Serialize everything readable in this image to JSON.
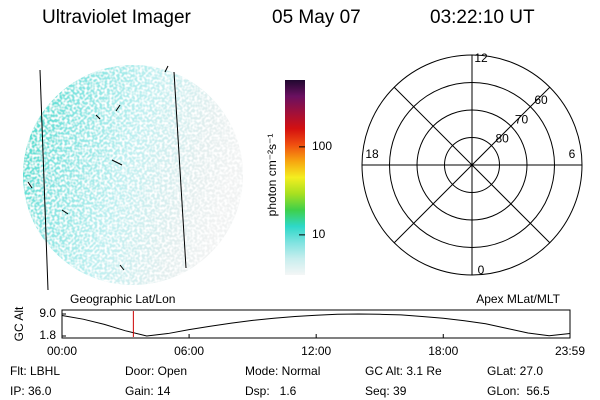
{
  "header": {
    "title": "Ultraviolet Imager",
    "date": "05 May 07",
    "time": "03:22:10 UT"
  },
  "colorbar": {
    "label": "photon cm⁻²s⁻¹",
    "scale": "log",
    "lim": [
      3.5,
      575
    ],
    "ticks": [
      10,
      100
    ],
    "colors": [
      "#f4f6f6",
      "#c8eeee",
      "#7fe3e0",
      "#2ed8c8",
      "#3fd04a",
      "#a8e020",
      "#f4ee20",
      "#f7a510",
      "#f05010",
      "#d41010",
      "#a0103a",
      "#6a1060",
      "#200830"
    ]
  },
  "image": {
    "title": "Geographic Lat/Lon"
  },
  "polar": {
    "title": "Apex MLat/MLT",
    "mlt_ticks": [
      12,
      18,
      6,
      0
    ],
    "mlat_rings": [
      60,
      70,
      80
    ],
    "mlat_lim": [
      50,
      90
    ]
  },
  "timeline": {
    "ylabel": "GC Alt",
    "x": [
      0,
      1,
      2,
      3,
      4,
      5,
      6,
      7,
      8,
      9,
      10,
      11,
      12,
      13,
      14,
      15,
      16,
      17,
      18,
      19,
      20,
      21,
      22,
      23,
      23.983
    ],
    "values": [
      8.5,
      7.3,
      5.6,
      3.5,
      1.8,
      2.6,
      3.9,
      5.0,
      6.0,
      6.9,
      7.6,
      8.2,
      8.6,
      8.9,
      9.0,
      8.9,
      8.7,
      8.2,
      7.6,
      6.8,
      5.8,
      4.3,
      2.8,
      1.9,
      2.6
    ],
    "xlim": [
      0,
      23.983
    ],
    "xticks": [
      {
        "value": 0,
        "label": "00:00"
      },
      {
        "value": 6,
        "label": "06:00"
      },
      {
        "value": 12,
        "label": "12:00"
      },
      {
        "value": 18,
        "label": "18:00"
      },
      {
        "value": 23.983,
        "label": "23:59"
      }
    ],
    "ylim": [
      1.8,
      9.0
    ],
    "yticks": [
      1.8,
      {
        "value": 9.0,
        "label": "9.0"
      }
    ],
    "current": 3.369,
    "color": "#000000",
    "current_color": "#cc0000"
  },
  "info": [
    [
      "Flt: LBHL",
      "Door: Open",
      "Mode: Normal",
      "GC Alt: 3.1 Re",
      "GLat: 27.0"
    ],
    [
      "IP: 36.0",
      "Gain: 14",
      "Dsp:   1.6",
      "Seq: 39",
      "GLon:  56.5"
    ]
  ]
}
